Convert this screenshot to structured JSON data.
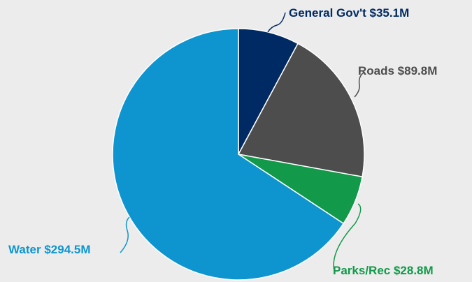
{
  "chart_data": {
    "type": "pie",
    "slices": [
      {
        "label": "General Gov't $35.1M",
        "value": 35.1,
        "color": "#002a63"
      },
      {
        "label": "Roads $89.8M",
        "value": 89.8,
        "color": "#4d4d4d"
      },
      {
        "label": "Parks/Rec $28.8M",
        "value": 28.8,
        "color": "#12994a"
      },
      {
        "label": "Water $294.5M",
        "value": 294.5,
        "color": "#0e95cf"
      }
    ],
    "legend": "none",
    "label_placement": "outside-with-leader-lines"
  }
}
